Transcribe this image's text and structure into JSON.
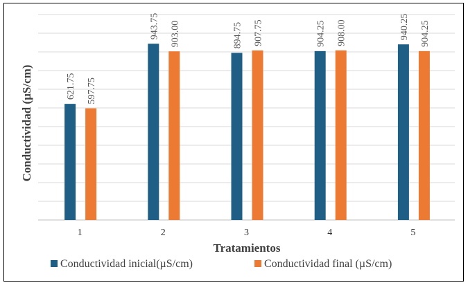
{
  "chart_data": {
    "type": "bar",
    "title": "",
    "xlabel": "Tratamientos",
    "ylabel": "Conductividad (µS/cm)",
    "categories": [
      "1",
      "2",
      "3",
      "4",
      "5"
    ],
    "ylim": [
      0,
      1100
    ],
    "grid": true,
    "legend_position": "bottom",
    "series": [
      {
        "name": "Conductividad inicial(µS/cm)",
        "color": "#1f5f86",
        "values": [
          621.75,
          943.75,
          894.75,
          904.25,
          940.25
        ],
        "labels": [
          "621.75",
          "943.75",
          "894.75",
          "904.25",
          "940.25"
        ]
      },
      {
        "name": "Conductividad final (µS/cm)",
        "color": "#ed7a33",
        "values": [
          597.75,
          903.0,
          907.75,
          908.0,
          904.25
        ],
        "labels": [
          "597.75",
          "903.00",
          "907.75",
          "908.00",
          "904.25"
        ]
      }
    ]
  }
}
